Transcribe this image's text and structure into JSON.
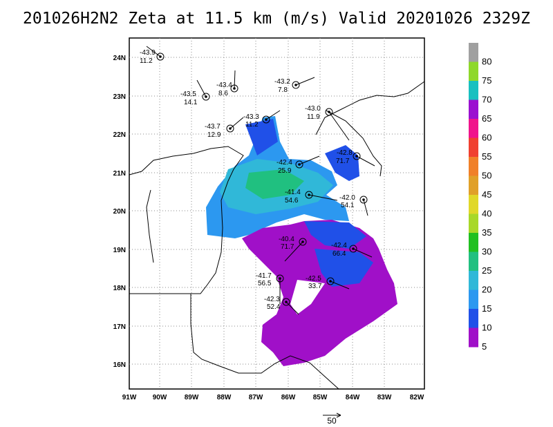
{
  "title": "201026H2N2 Zeta at 11.5 km (m/s) Valid 20201026 2329Z",
  "axes": {
    "lon_ticks": [
      "91W",
      "90W",
      "89W",
      "88W",
      "87W",
      "86W",
      "85W",
      "84W",
      "83W",
      "82W"
    ],
    "lat_ticks": [
      "24N",
      "23N",
      "22N",
      "21N",
      "20N",
      "19N",
      "18N",
      "17N",
      "16N"
    ]
  },
  "colorbar": {
    "labels": [
      "80",
      "75",
      "70",
      "65",
      "60",
      "55",
      "50",
      "45",
      "40",
      "35",
      "30",
      "25",
      "20",
      "15",
      "10",
      "5"
    ],
    "colors": [
      "#a0a0a0",
      "#8ed82a",
      "#18c0c0",
      "#9b10d0",
      "#f0148c",
      "#f04030",
      "#f08028",
      "#e0a028",
      "#e0d828",
      "#a8d828",
      "#20c020",
      "#20c080",
      "#30b8d8",
      "#2c98f0",
      "#2050e8",
      "#a010c8"
    ]
  },
  "reference_vector": {
    "label": "50"
  },
  "stations": [
    {
      "p": "-43.9",
      "v": "11.2"
    },
    {
      "p": "-43.4",
      "v": "8.6"
    },
    {
      "p": "-43.2",
      "v": "7.8"
    },
    {
      "p": "-43.5",
      "v": "14.1"
    },
    {
      "p": "-43.0",
      "v": "11.9"
    },
    {
      "p": "-43.3",
      "v": "11.2"
    },
    {
      "p": "-43.7",
      "v": "12.9"
    },
    {
      "p": "-42.8",
      "v": "71.7"
    },
    {
      "p": "-42.4",
      "v": "25.9"
    },
    {
      "p": "-41.4",
      "v": "54.6"
    },
    {
      "p": "-42.0",
      "v": "54.1"
    },
    {
      "p": "-40.4",
      "v": "71.7"
    },
    {
      "p": "-42.4",
      "v": "66.4"
    },
    {
      "p": "-41.7",
      "v": "56.5"
    },
    {
      "p": "-42.5",
      "v": "33.7"
    },
    {
      "p": "-42.3",
      "v": "52.4"
    }
  ]
}
